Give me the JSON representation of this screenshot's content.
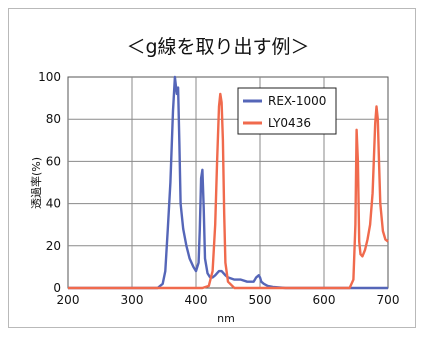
{
  "chart_data": {
    "type": "line",
    "title": "＜g線を取り出す例＞",
    "xlabel": "nm",
    "ylabel": "透過率(%)",
    "xlim": [
      200,
      700
    ],
    "ylim": [
      0,
      100
    ],
    "xticks": [
      200,
      300,
      400,
      500,
      600,
      700
    ],
    "yticks": [
      0,
      20,
      40,
      60,
      80,
      100
    ],
    "grid": true,
    "legend_position": "top-right",
    "series": [
      {
        "name": "REX-1000",
        "color": "#5566b8",
        "x": [
          200,
          340,
          348,
          352,
          356,
          360,
          364,
          367,
          370,
          372,
          374,
          376,
          380,
          385,
          390,
          396,
          400,
          404,
          406,
          408,
          410,
          412,
          414,
          418,
          422,
          426,
          430,
          436,
          440,
          446,
          450,
          460,
          470,
          480,
          490,
          494,
          498,
          500,
          502,
          506,
          512,
          520,
          540,
          560,
          580,
          600,
          620,
          640,
          660,
          680,
          700
        ],
        "y": [
          0,
          0,
          2,
          8,
          28,
          50,
          84,
          100,
          92,
          95,
          68,
          40,
          28,
          20,
          14,
          10,
          8,
          12,
          28,
          52,
          56,
          38,
          14,
          7,
          5,
          5,
          6,
          8,
          8,
          6,
          5,
          4,
          4,
          3,
          3,
          5,
          6,
          5,
          3,
          2,
          1,
          0.5,
          0,
          0,
          0,
          0,
          0,
          0,
          0,
          0,
          0
        ]
      },
      {
        "name": "LY0436",
        "color": "#f06a4d",
        "x": [
          200,
          410,
          420,
          426,
          430,
          433,
          436,
          438,
          440,
          442,
          444,
          446,
          450,
          460,
          480,
          520,
          580,
          640,
          646,
          649,
          651,
          653,
          655,
          657,
          660,
          664,
          668,
          672,
          676,
          680,
          682,
          684,
          686,
          688,
          692,
          696,
          700
        ],
        "y": [
          0,
          0,
          1,
          8,
          30,
          60,
          86,
          92,
          88,
          70,
          35,
          12,
          3,
          0,
          0,
          0,
          0,
          0,
          4,
          30,
          75,
          60,
          22,
          16,
          15,
          18,
          23,
          30,
          45,
          78,
          86,
          80,
          60,
          40,
          27,
          23,
          22
        ]
      }
    ]
  }
}
